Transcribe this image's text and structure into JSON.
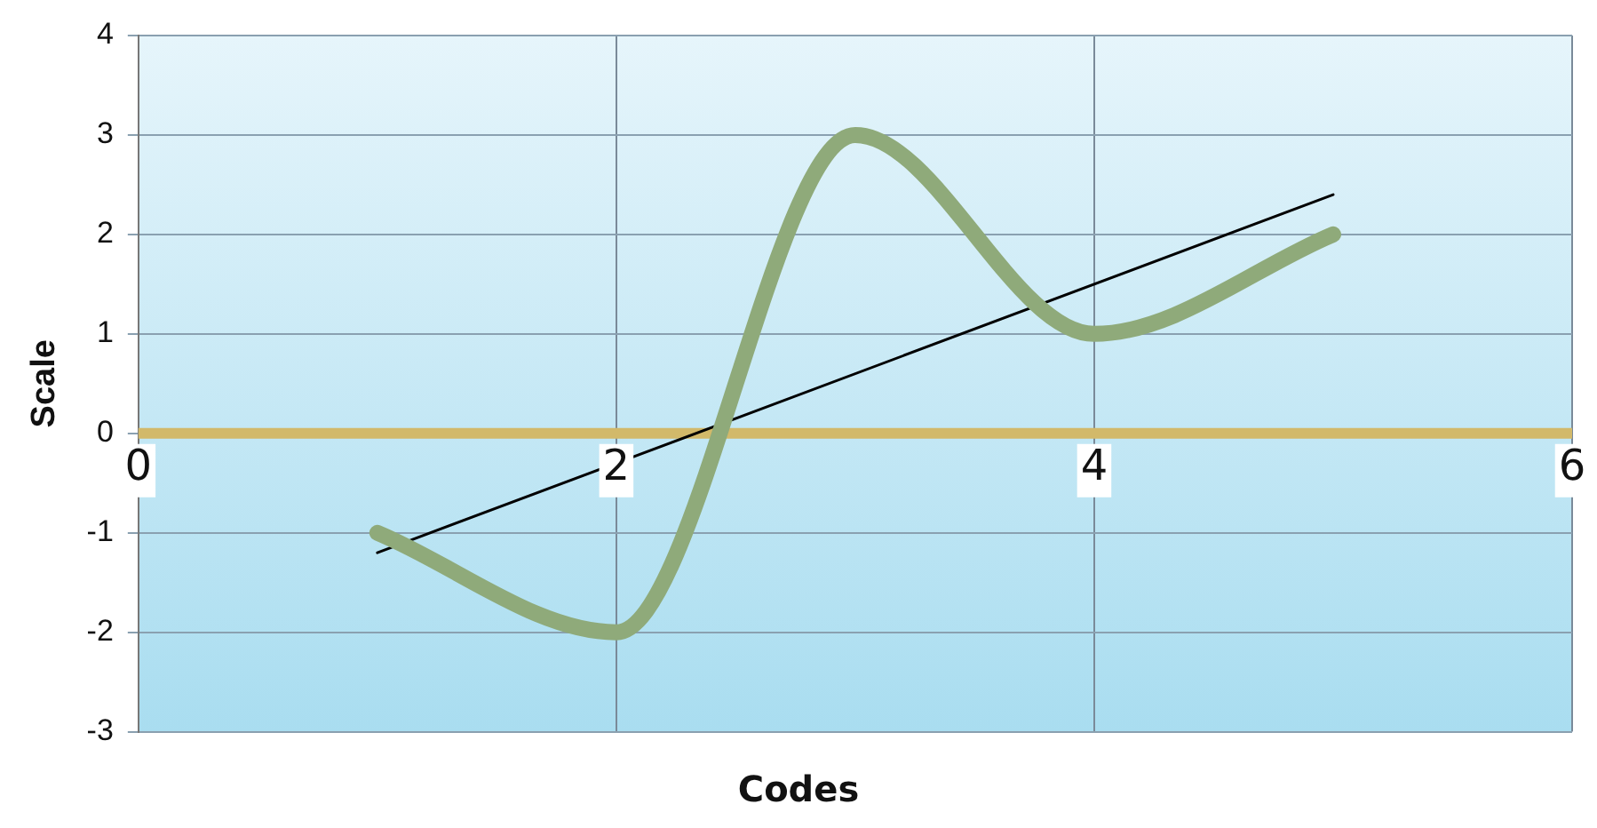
{
  "chart_data": {
    "type": "line",
    "xlabel": "Codes",
    "ylabel": "Scale",
    "x": [
      1,
      2,
      3,
      4,
      5
    ],
    "series": [
      {
        "color": "#8faa7a",
        "values": [
          -1,
          -2,
          3,
          1,
          2
        ]
      },
      {
        "type": "line",
        "x": [
          1,
          5
        ],
        "color": "#000000",
        "values": [
          -1.2,
          2.4
        ]
      }
    ],
    "xlim": [
      0,
      6
    ],
    "xticks": [
      0,
      2,
      4,
      6
    ],
    "ylim": [
      -3,
      4
    ],
    "yticks": [
      -3,
      -2,
      -1,
      0,
      1,
      2,
      3,
      4
    ],
    "grid": true,
    "legend": false,
    "marker": "none",
    "line_style": "solid"
  }
}
